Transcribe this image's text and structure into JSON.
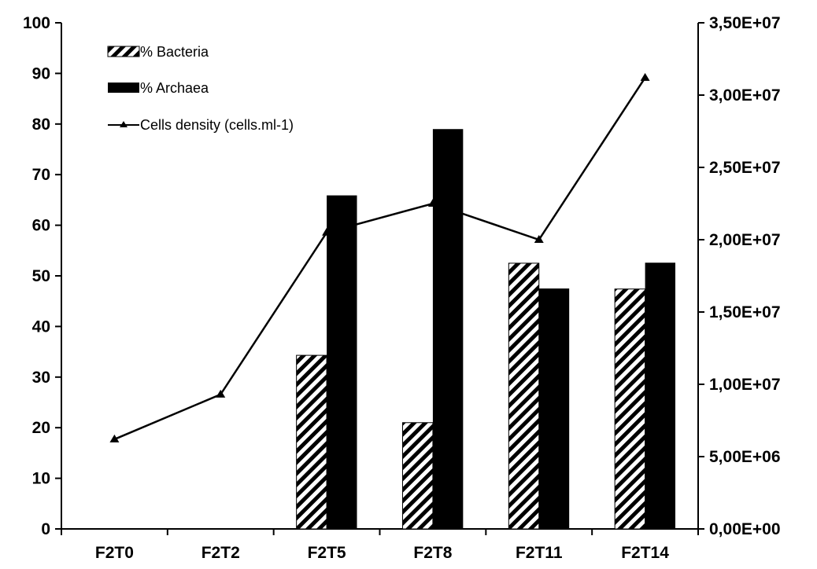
{
  "chart_data": {
    "type": "bar",
    "categories": [
      "F2T0",
      "F2T2",
      "F2T5",
      "F2T8",
      "F2T11",
      "F2T14"
    ],
    "series": [
      {
        "name": "% Bacteria",
        "type": "bar",
        "axis": "left",
        "pattern": "hatched",
        "values": [
          0,
          0,
          34.3,
          21,
          52.5,
          47.4
        ]
      },
      {
        "name": "% Archaea",
        "type": "bar",
        "axis": "left",
        "color": "#000000",
        "values": [
          0,
          0,
          65.9,
          79,
          47.5,
          52.6
        ]
      },
      {
        "name": "Cells density (cells.ml-1)",
        "type": "line",
        "axis": "right",
        "marker": "triangle",
        "color": "#000000",
        "values": [
          6200000,
          9300000,
          20500000,
          22500000,
          20000000,
          31200000
        ]
      }
    ],
    "y_left": {
      "min": 0,
      "max": 100,
      "ticks": [
        "0",
        "10",
        "20",
        "30",
        "40",
        "50",
        "60",
        "70",
        "80",
        "90",
        "100"
      ]
    },
    "y_right": {
      "min": 0,
      "max": 35000000,
      "ticks": [
        "0,00E+00",
        "5,00E+06",
        "1,00E+07",
        "1,50E+07",
        "2,00E+07",
        "2,50E+07",
        "3,00E+07",
        "3,50E+07"
      ]
    },
    "grid": false,
    "legend_position": "top-left"
  }
}
